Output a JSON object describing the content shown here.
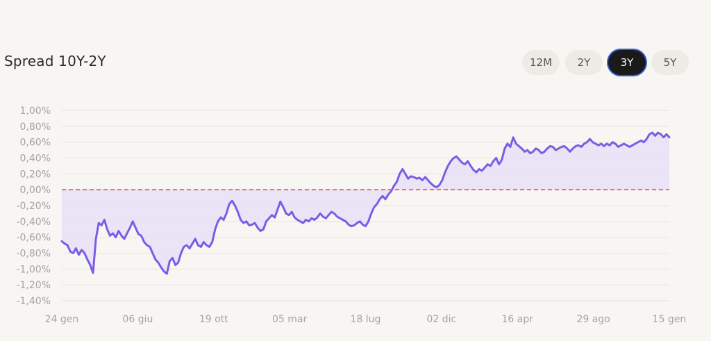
{
  "header": {
    "title": "Spread 10Y-2Y"
  },
  "range_tabs": [
    {
      "label": "12M",
      "active": false
    },
    {
      "label": "2Y",
      "active": false
    },
    {
      "label": "3Y",
      "active": true
    },
    {
      "label": "5Y",
      "active": false
    }
  ],
  "colors": {
    "line": "#7b5ce6",
    "fill": "#e6e0f6",
    "zero_line": "#e05050",
    "grid": "#e4e3de",
    "active_ring": "#2f5fd0"
  },
  "chart_data": {
    "type": "area",
    "title": "Spread 10Y-2Y",
    "xlabel": "",
    "ylabel": "",
    "ylim": [
      -1.4,
      1.0
    ],
    "grid": true,
    "reference_line": 0.0,
    "y_ticks": [
      "1,00%",
      "0,80%",
      "0,60%",
      "0,40%",
      "0,20%",
      "0,00%",
      "-0,20%",
      "-0,40%",
      "-0,60%",
      "-0,80%",
      "-1,00%",
      "-1,20%",
      "-1,40%"
    ],
    "x_ticks": [
      "24 gen",
      "06 giu",
      "19 ott",
      "05 mar",
      "18 lug",
      "02 dic",
      "16 apr",
      "29 ago",
      "15 gen"
    ],
    "series": [
      {
        "values": [
          -0.65,
          -0.68,
          -0.7,
          -0.78,
          -0.8,
          -0.74,
          -0.82,
          -0.76,
          -0.8,
          -0.88,
          -0.95,
          -1.05,
          -0.62,
          -0.42,
          -0.45,
          -0.38,
          -0.5,
          -0.58,
          -0.55,
          -0.6,
          -0.52,
          -0.58,
          -0.62,
          -0.55,
          -0.48,
          -0.4,
          -0.48,
          -0.56,
          -0.58,
          -0.66,
          -0.7,
          -0.72,
          -0.8,
          -0.88,
          -0.92,
          -0.98,
          -1.03,
          -1.06,
          -0.9,
          -0.86,
          -0.95,
          -0.92,
          -0.8,
          -0.72,
          -0.7,
          -0.74,
          -0.68,
          -0.62,
          -0.7,
          -0.72,
          -0.66,
          -0.7,
          -0.72,
          -0.66,
          -0.5,
          -0.4,
          -0.35,
          -0.38,
          -0.3,
          -0.18,
          -0.14,
          -0.2,
          -0.28,
          -0.38,
          -0.42,
          -0.4,
          -0.45,
          -0.44,
          -0.42,
          -0.48,
          -0.52,
          -0.5,
          -0.4,
          -0.36,
          -0.32,
          -0.35,
          -0.25,
          -0.15,
          -0.22,
          -0.3,
          -0.32,
          -0.28,
          -0.35,
          -0.38,
          -0.4,
          -0.42,
          -0.38,
          -0.4,
          -0.36,
          -0.38,
          -0.35,
          -0.3,
          -0.34,
          -0.36,
          -0.32,
          -0.28,
          -0.3,
          -0.34,
          -0.36,
          -0.38,
          -0.4,
          -0.44,
          -0.46,
          -0.45,
          -0.42,
          -0.4,
          -0.44,
          -0.46,
          -0.4,
          -0.3,
          -0.22,
          -0.18,
          -0.12,
          -0.08,
          -0.12,
          -0.06,
          -0.02,
          0.05,
          0.1,
          0.2,
          0.26,
          0.2,
          0.14,
          0.17,
          0.16,
          0.14,
          0.15,
          0.12,
          0.16,
          0.12,
          0.08,
          0.05,
          0.03,
          0.06,
          0.12,
          0.22,
          0.3,
          0.36,
          0.4,
          0.42,
          0.38,
          0.34,
          0.32,
          0.36,
          0.3,
          0.25,
          0.22,
          0.26,
          0.24,
          0.28,
          0.32,
          0.3,
          0.36,
          0.4,
          0.32,
          0.38,
          0.52,
          0.58,
          0.54,
          0.66,
          0.58,
          0.55,
          0.52,
          0.48,
          0.5,
          0.46,
          0.48,
          0.52,
          0.5,
          0.46,
          0.48,
          0.52,
          0.55,
          0.54,
          0.5,
          0.52,
          0.54,
          0.55,
          0.52,
          0.48,
          0.52,
          0.55,
          0.56,
          0.54,
          0.58,
          0.6,
          0.64,
          0.6,
          0.58,
          0.56,
          0.58,
          0.55,
          0.58,
          0.56,
          0.6,
          0.58,
          0.54,
          0.56,
          0.58,
          0.56,
          0.54,
          0.56,
          0.58,
          0.6,
          0.62,
          0.6,
          0.64,
          0.7,
          0.72,
          0.68,
          0.72,
          0.7,
          0.66,
          0.7,
          0.66
        ]
      }
    ]
  }
}
